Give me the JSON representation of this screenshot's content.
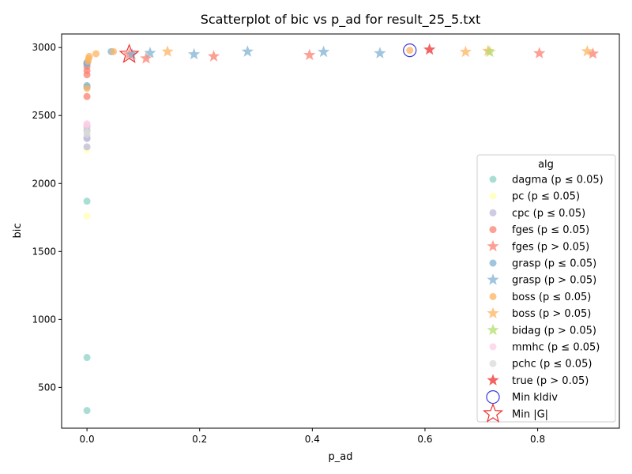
{
  "chart_data": {
    "type": "scatter",
    "title": "Scatterplot of bic vs p_ad for result_25_5.txt",
    "xlabel": "p_ad",
    "ylabel": "bic",
    "xlim": [
      -0.045,
      0.945
    ],
    "ylim": [
      200,
      3100
    ],
    "xticks": [
      0.0,
      0.2,
      0.4,
      0.6,
      0.8
    ],
    "xtick_labels": [
      "0.0",
      "0.2",
      "0.4",
      "0.6",
      "0.8"
    ],
    "yticks": [
      500,
      1000,
      1500,
      2000,
      2500,
      3000
    ],
    "ytick_labels": [
      "500",
      "1000",
      "1500",
      "2000",
      "2500",
      "3000"
    ],
    "grid": false,
    "legend": {
      "title": "alg",
      "placement": "lower right"
    },
    "series": [
      {
        "name": "dagma (p ≤ 0.05)",
        "marker": "circle",
        "color": "#8dd3c7",
        "points": [
          [
            0.0,
            330
          ],
          [
            0.0,
            720
          ],
          [
            0.0,
            1870
          ],
          [
            0.0,
            2890
          ]
        ]
      },
      {
        "name": "pc (p ≤ 0.05)",
        "marker": "circle",
        "color": "#ffffb3",
        "points": [
          [
            0.0,
            1760
          ],
          [
            0.0,
            2250
          ],
          [
            0.0,
            2400
          ]
        ]
      },
      {
        "name": "cpc (p ≤ 0.05)",
        "marker": "circle",
        "color": "#bebada",
        "points": [
          [
            0.0,
            2270
          ],
          [
            0.0,
            2330
          ],
          [
            0.0,
            2340
          ],
          [
            0.0,
            2390
          ],
          [
            0.0,
            2420
          ]
        ]
      },
      {
        "name": "fges (p ≤ 0.05)",
        "marker": "circle",
        "color": "#fb8072",
        "points": [
          [
            0.0,
            2640
          ],
          [
            0.0,
            2800
          ],
          [
            0.0,
            2830
          ],
          [
            0.0,
            2860
          ],
          [
            0.0,
            2880
          ]
        ]
      },
      {
        "name": "fges (p > 0.05)",
        "marker": "star",
        "color": "#fb8072",
        "points": [
          [
            0.075,
            2950
          ],
          [
            0.105,
            2920
          ],
          [
            0.225,
            2935
          ],
          [
            0.395,
            2945
          ],
          [
            0.803,
            2958
          ],
          [
            0.898,
            2955
          ]
        ]
      },
      {
        "name": "grasp (p ≤ 0.05)",
        "marker": "circle",
        "color": "#80b1d3",
        "points": [
          [
            0.0,
            2710
          ],
          [
            0.0,
            2720
          ],
          [
            0.0,
            2880
          ],
          [
            0.0,
            2890
          ],
          [
            0.043,
            2970
          ]
        ]
      },
      {
        "name": "grasp (p > 0.05)",
        "marker": "star",
        "color": "#80b1d3",
        "points": [
          [
            0.08,
            2950
          ],
          [
            0.112,
            2960
          ],
          [
            0.19,
            2950
          ],
          [
            0.285,
            2970
          ],
          [
            0.42,
            2968
          ],
          [
            0.52,
            2958
          ]
        ]
      },
      {
        "name": "boss (p ≤ 0.05)",
        "marker": "circle",
        "color": "#fdb462",
        "points": [
          [
            0.0,
            2700
          ],
          [
            0.002,
            2900
          ],
          [
            0.003,
            2920
          ],
          [
            0.004,
            2935
          ],
          [
            0.016,
            2955
          ],
          [
            0.047,
            2970
          ],
          [
            0.573,
            2980
          ]
        ]
      },
      {
        "name": "boss (p > 0.05)",
        "marker": "star",
        "color": "#fdb462",
        "points": [
          [
            0.143,
            2970
          ],
          [
            0.672,
            2968
          ],
          [
            0.712,
            2975
          ],
          [
            0.888,
            2972
          ]
        ]
      },
      {
        "name": "bidag (p > 0.05)",
        "marker": "star",
        "color": "#b3de69",
        "points": [
          [
            0.715,
            2968
          ]
        ]
      },
      {
        "name": "mmhc (p ≤ 0.05)",
        "marker": "circle",
        "color": "#fccde5",
        "points": [
          [
            0.0,
            2430
          ],
          [
            0.0,
            2440
          ]
        ]
      },
      {
        "name": "pchc (p ≤ 0.05)",
        "marker": "circle",
        "color": "#d9d9d9",
        "points": [
          [
            0.0,
            2360
          ],
          [
            0.0,
            2380
          ]
        ]
      },
      {
        "name": "true (p > 0.05)",
        "marker": "star",
        "color": "#ee3030",
        "points": [
          [
            0.608,
            2985
          ]
        ]
      },
      {
        "name": "Min kldiv",
        "marker": "open-circle",
        "color": "#3a3ae0",
        "points": [
          [
            0.573,
            2980
          ]
        ]
      },
      {
        "name": "Min |G|",
        "marker": "open-star",
        "color": "#ee3030",
        "points": [
          [
            0.075,
            2950
          ]
        ]
      }
    ]
  }
}
